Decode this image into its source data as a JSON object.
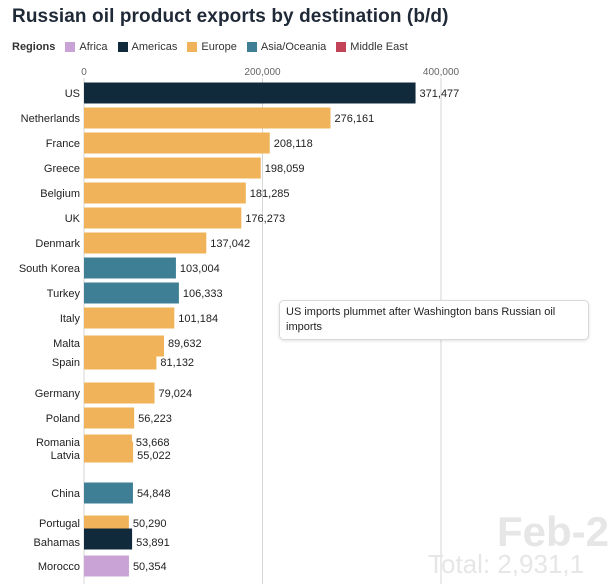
{
  "title": "Russian oil product exports by destination (b/d)",
  "legend": {
    "title": "Regions",
    "items": [
      {
        "label": "Africa",
        "color": "#c9a3d6"
      },
      {
        "label": "Americas",
        "color": "#102a3c"
      },
      {
        "label": "Europe",
        "color": "#f0b35a"
      },
      {
        "label": "Asia/Oceania",
        "color": "#3f7f96"
      },
      {
        "label": "Middle East",
        "color": "#c34459"
      }
    ]
  },
  "annotation": "US imports plummet after Washington bans Russian oil imports",
  "date_watermark": "Feb-2",
  "total_watermark": "Total: 2,931,1",
  "chart_data": {
    "type": "bar",
    "orientation": "horizontal",
    "x_ticks": [
      "0",
      "200,000",
      "400,000"
    ],
    "x_tick_values": [
      0,
      200000,
      400000
    ],
    "xlim": [
      0,
      400000
    ],
    "grid": true,
    "bars": [
      {
        "category": "US",
        "value": 371477,
        "label": "371,477",
        "region": "Americas"
      },
      {
        "category": "Netherlands",
        "value": 276161,
        "label": "276,161",
        "region": "Europe"
      },
      {
        "category": "France",
        "value": 208118,
        "label": "208,118",
        "region": "Europe"
      },
      {
        "category": "Greece",
        "value": 198059,
        "label": "198,059",
        "region": "Europe"
      },
      {
        "category": "Belgium",
        "value": 181285,
        "label": "181,285",
        "region": "Europe"
      },
      {
        "category": "UK",
        "value": 176273,
        "label": "176,273",
        "region": "Europe"
      },
      {
        "category": "Denmark",
        "value": 137042,
        "label": "137,042",
        "region": "Europe"
      },
      {
        "category": "South Korea",
        "value": 103004,
        "label": "103,004",
        "region": "Asia/Oceania"
      },
      {
        "category": "Turkey",
        "value": 106333,
        "label": "106,333",
        "region": "Asia/Oceania"
      },
      {
        "category": "Italy",
        "value": 101184,
        "label": "101,184",
        "region": "Europe"
      },
      {
        "category": "Malta",
        "value": 89632,
        "label": "89,632",
        "region": "Europe"
      },
      {
        "category": "Spain",
        "value": 81132,
        "label": "81,132",
        "region": "Europe"
      },
      {
        "category": "Germany",
        "value": 79024,
        "label": "79,024",
        "region": "Europe"
      },
      {
        "category": "Poland",
        "value": 56223,
        "label": "56,223",
        "region": "Europe"
      },
      {
        "category": "Romania",
        "value": 53668,
        "label": "53,668",
        "region": "Europe"
      },
      {
        "category": "Latvia",
        "value": 55022,
        "label": "55,022",
        "region": "Europe"
      },
      {
        "category": "China",
        "value": 54848,
        "label": "54,848",
        "region": "Asia/Oceania"
      },
      {
        "category": "Portugal",
        "value": 50290,
        "label": "50,290",
        "region": "Europe"
      },
      {
        "category": "Bahamas",
        "value": 53891,
        "label": "53,891",
        "region": "Americas"
      },
      {
        "category": "Morocco",
        "value": 50354,
        "label": "50,354",
        "region": "Africa"
      }
    ]
  }
}
